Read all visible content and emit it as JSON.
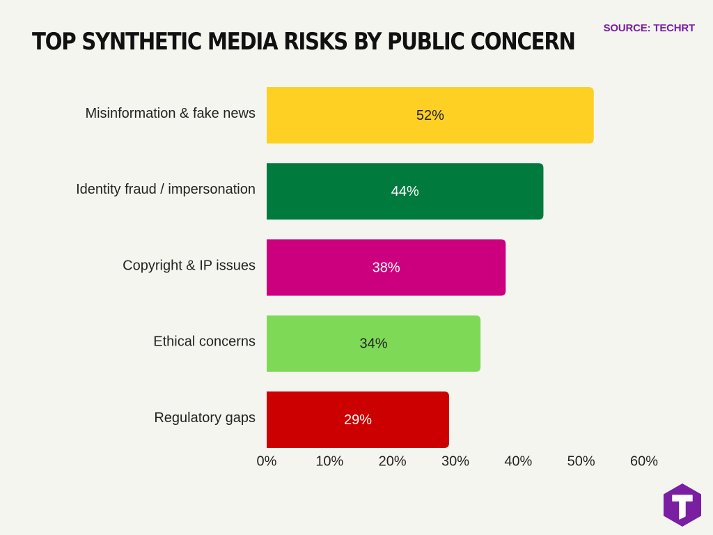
{
  "title": "TOP SYNTHETIC MEDIA RISKS BY PUBLIC CONCERN",
  "source": "SOURCE: TECHRT",
  "logo": {
    "icon": "techrt-hexagon-t-icon",
    "color": "#7b1fa2"
  },
  "chart_data": {
    "type": "bar",
    "orientation": "horizontal",
    "title": "TOP SYNTHETIC MEDIA RISKS BY PUBLIC CONCERN",
    "xlabel": "",
    "ylabel": "",
    "xlim": [
      0,
      60
    ],
    "grid": false,
    "legend": "none",
    "categories": [
      "Misinformation & fake news",
      "Identity fraud / impersonation",
      "Copyright & IP issues",
      "Ethical concerns",
      "Regulatory gaps"
    ],
    "values": [
      52,
      44,
      38,
      34,
      29
    ],
    "data_labels": [
      "52%",
      "44%",
      "38%",
      "34%",
      "29%"
    ],
    "colors": [
      "#fdd023",
      "#007a3d",
      "#cc007e",
      "#7ed957",
      "#cc0000"
    ],
    "label_colors": [
      "#222222",
      "#ffffff",
      "#ffffff",
      "#222222",
      "#ffffff"
    ],
    "x_ticks": [
      0,
      10,
      20,
      30,
      40,
      50,
      60
    ],
    "x_tick_labels": [
      "0%",
      "10%",
      "20%",
      "30%",
      "40%",
      "50%",
      "60%"
    ]
  }
}
